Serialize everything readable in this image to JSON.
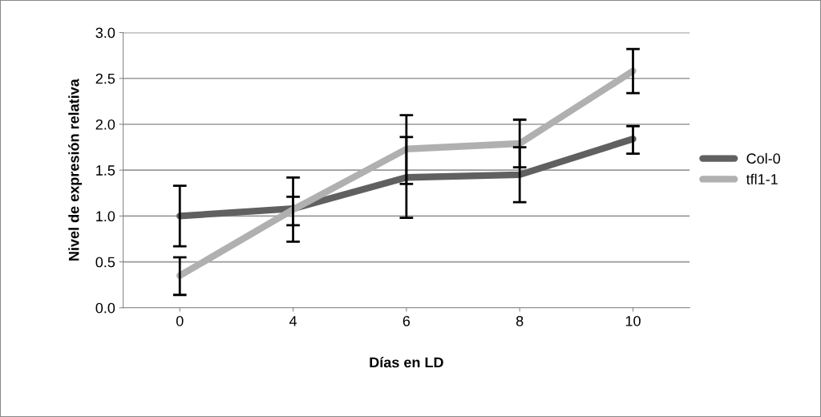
{
  "chart_data": {
    "type": "line",
    "xlabel": "Días en LD",
    "ylabel": "Nivel de expresión relativa",
    "categories": [
      "0",
      "4",
      "6",
      "8",
      "10"
    ],
    "series": [
      {
        "name": "Col-0",
        "color": "#606060",
        "values": [
          1.0,
          1.08,
          1.42,
          1.45,
          1.84
        ],
        "errors": [
          [
            0.67,
            1.33
          ],
          [
            0.72,
            1.42
          ],
          [
            0.98,
            1.86
          ],
          [
            1.15,
            1.75
          ],
          [
            1.68,
            1.98
          ]
        ]
      },
      {
        "name": "tfl1-1",
        "color": "#b0b0b0",
        "values": [
          0.35,
          1.07,
          1.73,
          1.79,
          2.58
        ],
        "errors": [
          [
            0.14,
            0.55
          ],
          [
            0.9,
            1.21
          ],
          [
            1.35,
            2.1
          ],
          [
            1.53,
            2.05
          ],
          [
            2.34,
            2.82
          ]
        ]
      }
    ],
    "ylim": [
      0,
      3
    ],
    "yticks": [
      {
        "value": 0,
        "label": "0.0"
      },
      {
        "value": 0.5,
        "label": "0.5"
      },
      {
        "value": 1,
        "label": "1.0"
      },
      {
        "value": 1.5,
        "label": "1.5"
      },
      {
        "value": 2,
        "label": "2.0"
      },
      {
        "value": 2.5,
        "label": "2.5"
      },
      {
        "value": 3,
        "label": "3.0"
      }
    ],
    "grid": "y",
    "legend": "right",
    "marker": "none",
    "line_style": "solid"
  }
}
